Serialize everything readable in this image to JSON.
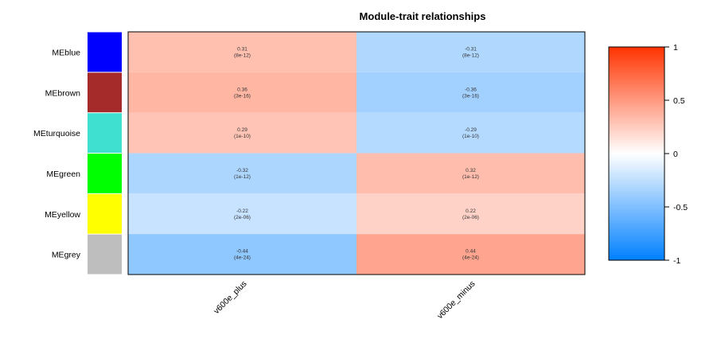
{
  "chart_data": {
    "type": "heatmap",
    "title": "Module-trait relationships",
    "rows": [
      {
        "label": "MEblue",
        "color": "#0000FF"
      },
      {
        "label": "MEbrown",
        "color": "#A52A2A"
      },
      {
        "label": "MEturquoise",
        "color": "#40E0D0"
      },
      {
        "label": "MEgreen",
        "color": "#00FF00"
      },
      {
        "label": "MEyellow",
        "color": "#FFFF00"
      },
      {
        "label": "MEgrey",
        "color": "#BEBEBE"
      }
    ],
    "columns": [
      "v600e_plus",
      "v600e_minus"
    ],
    "values": [
      [
        0.31,
        -0.31
      ],
      [
        0.36,
        -0.36
      ],
      [
        0.29,
        -0.29
      ],
      [
        -0.32,
        0.32
      ],
      [
        -0.22,
        0.22
      ],
      [
        -0.44,
        0.44
      ]
    ],
    "cell_text": [
      [
        [
          "0.31",
          "(8e-12)"
        ],
        [
          "-0.31",
          "(8e-12)"
        ]
      ],
      [
        [
          "0.36",
          "(3e-16)"
        ],
        [
          "-0.36",
          "(3e-16)"
        ]
      ],
      [
        [
          "0.29",
          "(1e-10)"
        ],
        [
          "-0.29",
          "(1e-10)"
        ]
      ],
      [
        [
          "-0.32",
          "(1e-12)"
        ],
        [
          "0.32",
          "(1e-12)"
        ]
      ],
      [
        [
          "-0.22",
          "(2e-06)"
        ],
        [
          "0.22",
          "(2e-06)"
        ]
      ],
      [
        [
          "-0.44",
          "(4e-24)"
        ],
        [
          "0.44",
          "(4e-24)"
        ]
      ]
    ],
    "colorbar": {
      "range": [
        -1,
        1
      ],
      "ticks": [
        "1",
        "0.5",
        "0",
        "-0.5",
        "-1"
      ],
      "colors": {
        "negative": "#0080FF",
        "middle": "#FFFFFF",
        "positive": "#FF3300"
      }
    }
  }
}
